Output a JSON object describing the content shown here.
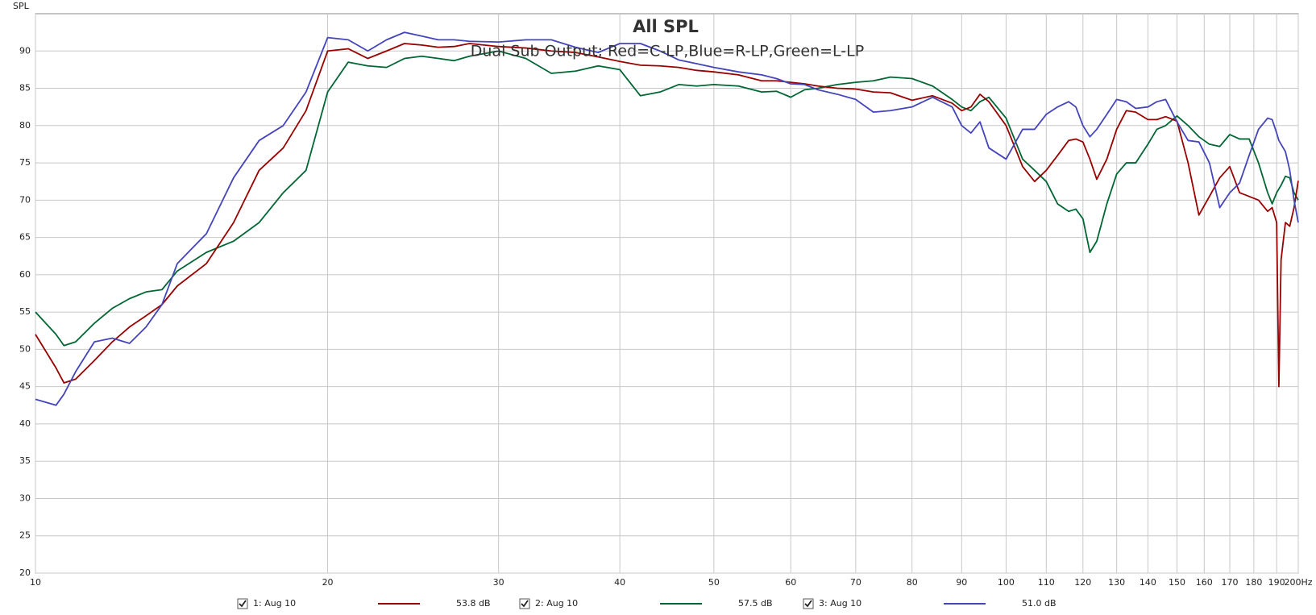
{
  "chart_data": {
    "type": "line",
    "title": "All SPL",
    "subtitle": "Dual Sub Output; Red=C-LP,Blue=R-LP,Green=L-LP",
    "y_label": "SPL",
    "xscale": "log",
    "grid": true,
    "legend": "bottom",
    "xlim": [
      10,
      200
    ],
    "ylim": [
      20,
      95
    ],
    "xticks": [
      10,
      20,
      30,
      40,
      50,
      60,
      70,
      80,
      90,
      100,
      110,
      120,
      130,
      140,
      150,
      160,
      170,
      180,
      190,
      {
        "value": 200,
        "label": "200Hz"
      }
    ],
    "yticks": [
      20,
      25,
      30,
      35,
      40,
      45,
      50,
      55,
      60,
      65,
      70,
      75,
      80,
      85,
      90
    ],
    "x": [
      10,
      10.5,
      10.7,
      11,
      11.5,
      12,
      12.5,
      13,
      13.5,
      14,
      15,
      16,
      17,
      18,
      19,
      20,
      21,
      22,
      23,
      24,
      25,
      26,
      27,
      28,
      30,
      32,
      34,
      36,
      38,
      40,
      42,
      44,
      46,
      48,
      50,
      53,
      56,
      58,
      60,
      62,
      64,
      67,
      70,
      73,
      76,
      80,
      84,
      88,
      90,
      92,
      94,
      96,
      100,
      104,
      107,
      110,
      113,
      116,
      118,
      120,
      122,
      124,
      127,
      130,
      133,
      136,
      140,
      143,
      146,
      150,
      154,
      158,
      162,
      166,
      170,
      174,
      178,
      182,
      186,
      188,
      190,
      191,
      192,
      194,
      196,
      198,
      200
    ],
    "series": [
      {
        "name": "1: Aug 10",
        "level": "53.8 dB",
        "color": "#990000",
        "values": [
          52,
          47.5,
          45.5,
          46,
          48.5,
          51,
          53,
          54.5,
          56,
          58.5,
          61.5,
          67,
          74,
          77,
          82,
          90,
          90.3,
          89,
          90,
          91,
          90.8,
          90.5,
          90.6,
          91,
          90.6,
          90.4,
          90,
          89.8,
          89.2,
          88.6,
          88.1,
          88,
          87.8,
          87.4,
          87.2,
          86.8,
          86,
          86,
          85.8,
          85.6,
          85.3,
          85,
          84.9,
          84.5,
          84.4,
          83.4,
          84,
          83,
          82,
          82.5,
          84.2,
          83.2,
          80,
          74.5,
          72.5,
          74,
          76,
          78,
          78.2,
          77.8,
          75.5,
          72.8,
          75.5,
          79.5,
          82,
          81.8,
          80.8,
          80.8,
          81.2,
          80.6,
          75,
          68,
          70.5,
          73,
          74.5,
          71,
          70.5,
          70,
          68.5,
          69,
          67,
          45,
          62,
          67,
          66.5,
          69,
          72.6
        ]
      },
      {
        "name": "2: Aug 10",
        "level": "57.5 dB",
        "color": "#006633",
        "values": [
          55,
          52,
          50.5,
          51,
          53.5,
          55.5,
          56.8,
          57.7,
          58,
          60.5,
          63,
          64.5,
          67,
          71,
          74,
          84.5,
          88.5,
          88,
          87.8,
          89,
          89.3,
          89,
          88.7,
          89.3,
          90,
          89,
          87,
          87.3,
          88,
          87.5,
          84,
          84.5,
          85.5,
          85.3,
          85.5,
          85.3,
          84.5,
          84.6,
          83.8,
          84.8,
          85,
          85.5,
          85.8,
          86,
          86.5,
          86.3,
          85.3,
          83.5,
          82.5,
          82,
          83.2,
          83.8,
          81,
          75.5,
          74,
          72.5,
          69.5,
          68.5,
          68.8,
          67.5,
          63,
          64.5,
          69.5,
          73.5,
          75,
          75,
          77.5,
          79.5,
          80,
          81.3,
          80,
          78.5,
          77.5,
          77.2,
          78.8,
          78.2,
          78.2,
          75,
          71,
          69.5,
          71,
          71.5,
          72,
          73.2,
          73,
          71,
          70
        ]
      },
      {
        "name": "3: Aug 10",
        "level": "51.0 dB",
        "color": "#4444bb",
        "values": [
          43.3,
          42.5,
          44,
          47,
          51,
          51.5,
          50.8,
          53,
          56,
          61.5,
          65.5,
          73,
          78,
          80,
          84.5,
          91.8,
          91.5,
          90,
          91.5,
          92.5,
          92,
          91.5,
          91.5,
          91.3,
          91.2,
          91.5,
          91.5,
          90.5,
          89.8,
          91,
          91,
          90,
          88.8,
          88.3,
          87.8,
          87.2,
          86.8,
          86.3,
          85.6,
          85.5,
          84.8,
          84.2,
          83.5,
          81.8,
          82,
          82.5,
          83.8,
          82.5,
          80,
          79,
          80.5,
          77,
          75.5,
          79.5,
          79.5,
          81.5,
          82.5,
          83.2,
          82.5,
          80,
          78.5,
          79.5,
          81.5,
          83.5,
          83.2,
          82.3,
          82.5,
          83.2,
          83.5,
          80.5,
          78,
          77.8,
          75,
          69,
          71,
          72.3,
          76,
          79.5,
          81,
          80.8,
          79,
          78,
          77.5,
          76.5,
          74,
          70,
          67
        ]
      }
    ]
  }
}
